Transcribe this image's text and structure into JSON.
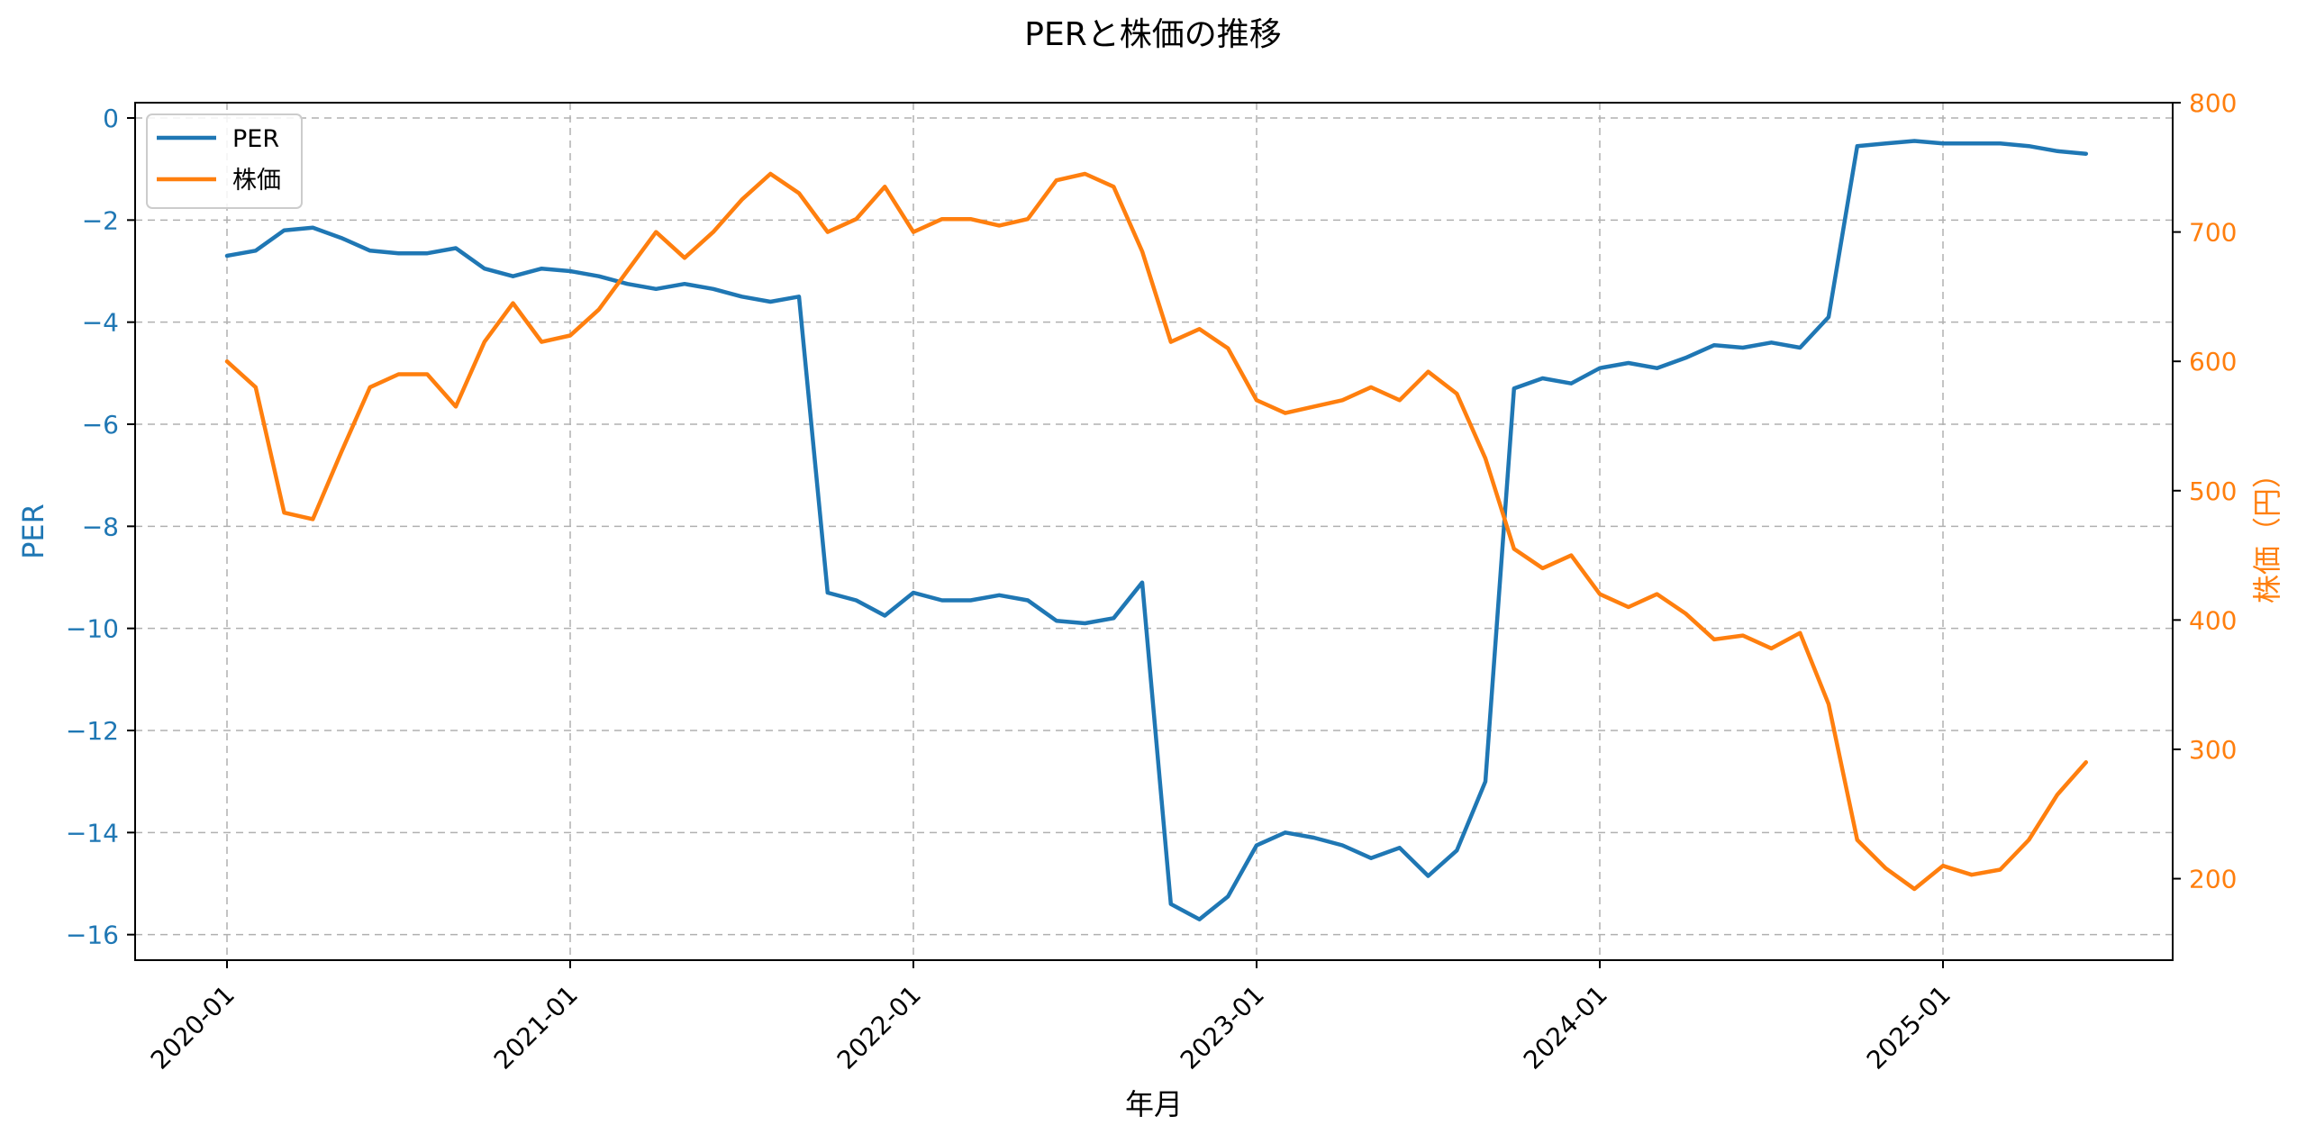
{
  "chart_data": {
    "type": "line",
    "title": "PERと株価の推移",
    "xlabel": "年月",
    "ylabel_left": "PER",
    "ylabel_right": "株価（円）",
    "x_tick_labels": [
      "2020-01",
      "2021-01",
      "2022-01",
      "2023-01",
      "2024-01",
      "2025-01"
    ],
    "x_start": "2020-01",
    "x_month_count": 66,
    "ylim_left": [
      -16.5,
      0.3
    ],
    "ylim_right": [
      137,
      800
    ],
    "yticks_left": [
      0,
      -2,
      -4,
      -6,
      -8,
      -10,
      -12,
      -14,
      -16
    ],
    "yticks_right": [
      800,
      700,
      600,
      500,
      400,
      300,
      200
    ],
    "grid": true,
    "legend_position": "top-left",
    "series": [
      {
        "name": "PER",
        "axis": "left",
        "color": "#1f77b4",
        "values": [
          -2.7,
          -2.6,
          -2.2,
          -2.15,
          -2.35,
          -2.6,
          -2.65,
          -2.65,
          -2.55,
          -2.95,
          -3.1,
          -2.95,
          -3.0,
          -3.1,
          -3.25,
          -3.35,
          -3.25,
          -3.35,
          -3.5,
          -3.6,
          -3.5,
          -9.3,
          -9.45,
          -9.75,
          -9.3,
          -9.45,
          -9.45,
          -9.35,
          -9.45,
          -9.85,
          -9.9,
          -9.8,
          -9.1,
          -15.4,
          -15.7,
          -15.25,
          -14.25,
          -14.0,
          -14.1,
          -14.25,
          -14.5,
          -14.3,
          -14.85,
          -14.35,
          -13.0,
          -5.3,
          -5.1,
          -5.2,
          -4.9,
          -4.8,
          -4.9,
          -4.7,
          -4.45,
          -4.5,
          -4.4,
          -4.5,
          -3.9,
          -0.55,
          -0.5,
          -0.45,
          -0.5,
          -0.5,
          -0.5,
          -0.55,
          -0.65,
          -0.7
        ]
      },
      {
        "name": "株価",
        "axis": "right",
        "color": "#ff7f0e",
        "values": [
          600,
          580,
          483,
          478,
          530,
          580,
          590,
          590,
          565,
          615,
          645,
          615,
          620,
          640,
          670,
          700,
          680,
          700,
          725,
          745,
          730,
          700,
          710,
          735,
          700,
          710,
          710,
          705,
          710,
          740,
          745,
          735,
          685,
          615,
          625,
          610,
          570,
          560,
          565,
          570,
          580,
          570,
          592,
          575,
          525,
          455,
          440,
          450,
          420,
          410,
          420,
          405,
          385,
          388,
          378,
          390,
          335,
          230,
          208,
          192,
          210,
          203,
          207,
          230,
          265,
          290
        ]
      }
    ]
  }
}
